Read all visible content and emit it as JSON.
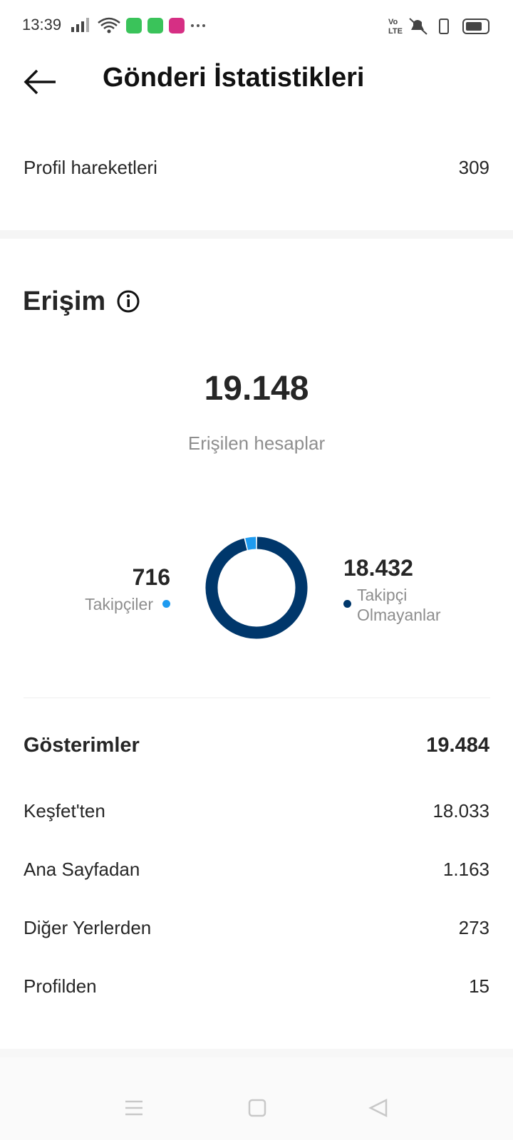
{
  "status": {
    "time": "13:39"
  },
  "header": {
    "title": "Gönderi İstatistikleri"
  },
  "profile_actions": {
    "label": "Profil hareketleri",
    "value": "309"
  },
  "reach": {
    "title": "Erişim",
    "total": "19.148",
    "total_label": "Erişilen hesaplar",
    "segments": [
      {
        "name": "Takipçiler",
        "value": 716,
        "label": "716",
        "color": "#1e9bf0"
      },
      {
        "name": "Takipçi Olmayanlar",
        "value": 18432,
        "label": "18.432",
        "color": "#00376b"
      }
    ]
  },
  "impressions": {
    "title": "Gösterimler",
    "value": "19.484",
    "rows": [
      {
        "label": "Keşfet'ten",
        "value": "18.033"
      },
      {
        "label": "Ana Sayfadan",
        "value": "1.163"
      },
      {
        "label": "Diğer Yerlerden",
        "value": "273"
      },
      {
        "label": "Profilden",
        "value": "15"
      }
    ]
  }
}
